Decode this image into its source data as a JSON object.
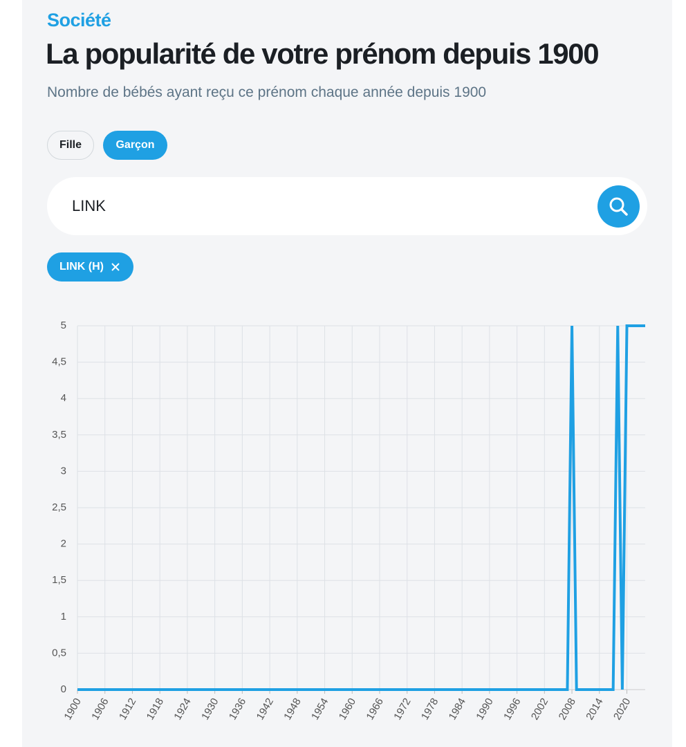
{
  "header": {
    "kicker": "Société",
    "title": "La popularité de votre prénom depuis 1900",
    "subtitle": "Nombre de bébés ayant reçu ce prénom chaque année depuis 1900"
  },
  "controls": {
    "filters": [
      "Fille",
      "Garçon"
    ],
    "search_value": "LINK",
    "chip": "LINK (H)"
  },
  "chart_data": {
    "type": "line",
    "color": "#1fa0e3",
    "grid": true,
    "x": [
      1900,
      1901,
      1902,
      1903,
      1904,
      1905,
      1906,
      1907,
      1908,
      1909,
      1910,
      1911,
      1912,
      1913,
      1914,
      1915,
      1916,
      1917,
      1918,
      1919,
      1920,
      1921,
      1922,
      1923,
      1924,
      1925,
      1926,
      1927,
      1928,
      1929,
      1930,
      1931,
      1932,
      1933,
      1934,
      1935,
      1936,
      1937,
      1938,
      1939,
      1940,
      1941,
      1942,
      1943,
      1944,
      1945,
      1946,
      1947,
      1948,
      1949,
      1950,
      1951,
      1952,
      1953,
      1954,
      1955,
      1956,
      1957,
      1958,
      1959,
      1960,
      1961,
      1962,
      1963,
      1964,
      1965,
      1966,
      1967,
      1968,
      1969,
      1970,
      1971,
      1972,
      1973,
      1974,
      1975,
      1976,
      1977,
      1978,
      1979,
      1980,
      1981,
      1982,
      1983,
      1984,
      1985,
      1986,
      1987,
      1988,
      1989,
      1990,
      1991,
      1992,
      1993,
      1994,
      1995,
      1996,
      1997,
      1998,
      1999,
      2000,
      2001,
      2002,
      2003,
      2004,
      2005,
      2006,
      2007,
      2008,
      2009,
      2010,
      2011,
      2012,
      2013,
      2014,
      2015,
      2016,
      2017,
      2018,
      2019,
      2020,
      2021,
      2022,
      2023,
      2024
    ],
    "values": [
      0,
      0,
      0,
      0,
      0,
      0,
      0,
      0,
      0,
      0,
      0,
      0,
      0,
      0,
      0,
      0,
      0,
      0,
      0,
      0,
      0,
      0,
      0,
      0,
      0,
      0,
      0,
      0,
      0,
      0,
      0,
      0,
      0,
      0,
      0,
      0,
      0,
      0,
      0,
      0,
      0,
      0,
      0,
      0,
      0,
      0,
      0,
      0,
      0,
      0,
      0,
      0,
      0,
      0,
      0,
      0,
      0,
      0,
      0,
      0,
      0,
      0,
      0,
      0,
      0,
      0,
      0,
      0,
      0,
      0,
      0,
      0,
      0,
      0,
      0,
      0,
      0,
      0,
      0,
      0,
      0,
      0,
      0,
      0,
      0,
      0,
      0,
      0,
      0,
      0,
      0,
      0,
      0,
      0,
      0,
      0,
      0,
      0,
      0,
      0,
      0,
      0,
      0,
      0,
      0,
      0,
      0,
      0,
      5,
      0,
      0,
      0,
      0,
      0,
      0,
      0,
      0,
      0,
      5,
      0,
      5,
      5,
      5,
      5,
      5
    ],
    "xlim": [
      1900,
      2024
    ],
    "xticks": [
      1900,
      1906,
      1912,
      1918,
      1924,
      1930,
      1936,
      1942,
      1948,
      1954,
      1960,
      1966,
      1972,
      1978,
      1984,
      1990,
      1996,
      2002,
      2008,
      2014,
      2020
    ],
    "ylim": [
      0,
      5
    ],
    "yticks": [
      0,
      {
        "value": 0.5,
        "label": "0,5"
      },
      1,
      {
        "value": 1.5,
        "label": "1,5"
      },
      2,
      {
        "value": 2.5,
        "label": "2,5"
      },
      3,
      {
        "value": 3.5,
        "label": "3,5"
      },
      4,
      {
        "value": 4.5,
        "label": "4,5"
      },
      5
    ]
  }
}
